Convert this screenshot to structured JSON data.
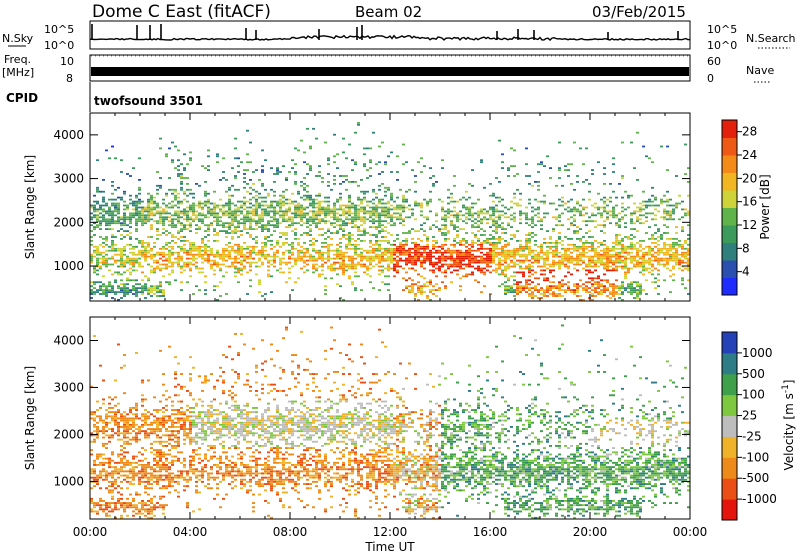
{
  "header": {
    "station": "Dome C East (fitACF)",
    "beam": "Beam 02",
    "date": "03/Feb/2015"
  },
  "panels": {
    "nsky": {
      "label": "N.Sky",
      "tick_top": "10^5",
      "tick_bottom": "10^0",
      "right_label": "N.Search",
      "right_tick_top": "10^5",
      "right_tick_bottom": "10^0"
    },
    "freq": {
      "label": "Freq.",
      "unit": "[MHz]",
      "tick_top": "10",
      "tick_bottom": "8",
      "right_label": "Nave",
      "right_tick_top": "60",
      "right_tick_bottom": "0"
    },
    "cpid": {
      "label": "CPID",
      "value": "twofsound 3501"
    }
  },
  "chart_data": [
    {
      "type": "heatmap",
      "title": "",
      "quantity": "Power",
      "xlabel": "",
      "ylabel": "Slant Range [km]",
      "x_ticks": [
        "00:00",
        "04:00",
        "08:00",
        "12:00",
        "16:00",
        "20:00",
        "00:00"
      ],
      "x_range_hours": [
        0,
        24
      ],
      "y_ticks": [
        1000,
        2000,
        3000,
        4000
      ],
      "ylim": [
        200,
        4500
      ],
      "colorbar": {
        "label": "Power [dB]",
        "ticks": [
          4,
          8,
          12,
          16,
          20,
          24,
          28
        ],
        "range": [
          0,
          30
        ],
        "colors": [
          "#1f2cff",
          "#2a4fae",
          "#2f7f7c",
          "#3c9a5c",
          "#5fb34a",
          "#cfd33a",
          "#f2b623",
          "#f48a18",
          "#ee5a16",
          "#e3200c"
        ]
      }
    },
    {
      "type": "heatmap",
      "title": "",
      "quantity": "Velocity",
      "xlabel": "Time UT",
      "ylabel": "Slant Range [km]",
      "x_ticks": [
        "00:00",
        "04:00",
        "08:00",
        "12:00",
        "16:00",
        "20:00",
        "00:00"
      ],
      "x_range_hours": [
        0,
        24
      ],
      "y_ticks": [
        1000,
        2000,
        3000,
        4000
      ],
      "ylim": [
        200,
        4500
      ],
      "colorbar": {
        "label": "Velocity [m s",
        "label_exp": "-1",
        "label_close": "]",
        "ticks": [
          "1000",
          "500",
          "100",
          "25",
          "-25",
          "-100",
          "-500",
          "-1000"
        ],
        "colors": [
          "#2441b8",
          "#2d7c86",
          "#3fa04b",
          "#7ec840",
          "#bdbdbd",
          "#f0b229",
          "#ee8a1a",
          "#eb4f16",
          "#e3150c"
        ]
      }
    }
  ]
}
